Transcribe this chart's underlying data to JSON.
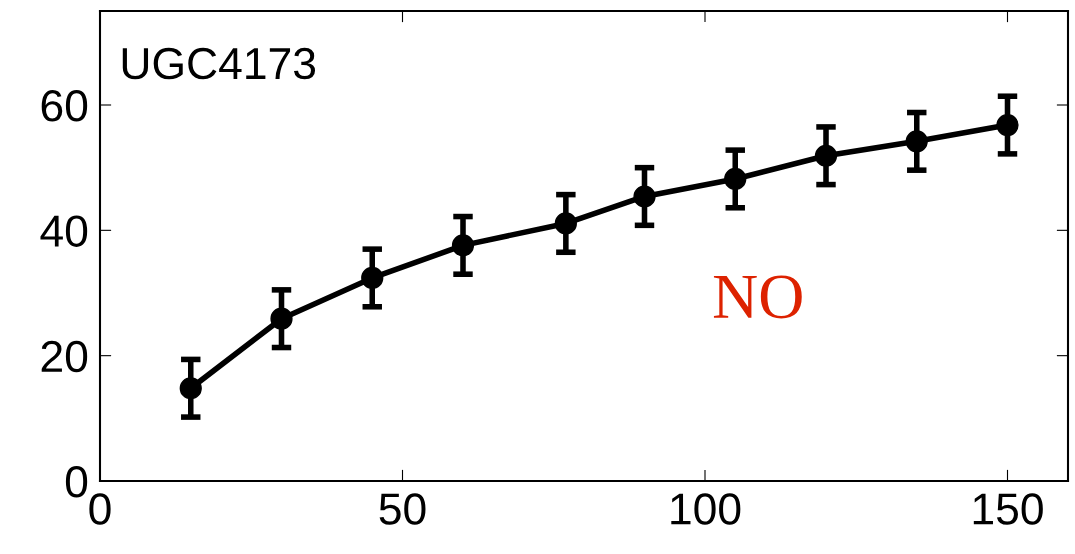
{
  "chart_data": {
    "type": "line",
    "x": [
      15,
      30,
      45,
      60,
      77,
      90,
      105,
      120,
      135,
      150
    ],
    "series": [
      {
        "color": "#000000",
        "values": [
          14.8,
          25.9,
          32.4,
          37.6,
          41.1,
          45.4,
          48.2,
          51.9,
          54.2,
          56.8
        ],
        "errors": [
          4.6,
          4.6,
          4.6,
          4.6,
          4.6,
          4.6,
          4.6,
          4.6,
          4.6,
          4.6
        ]
      }
    ],
    "marker": "circle",
    "line_style": "solid",
    "xlim": [
      0,
      160
    ],
    "xticks": [
      0,
      50,
      100,
      150
    ],
    "ylim": [
      0,
      75
    ],
    "yticks": [
      0,
      20,
      40,
      60
    ],
    "annotations": [
      "UGC4173",
      "NO"
    ]
  }
}
